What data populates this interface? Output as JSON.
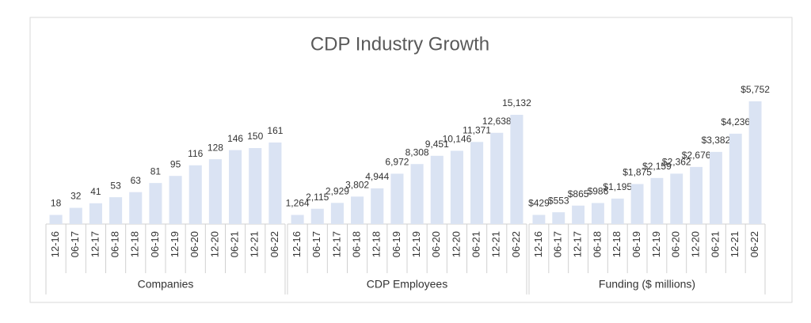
{
  "chart_data": {
    "type": "bar",
    "title": "CDP Industry Growth",
    "color": "#dae3f3",
    "categories": [
      "12-16",
      "06-17",
      "12-17",
      "06-18",
      "12-18",
      "06-19",
      "12-19",
      "06-20",
      "12-20",
      "06-21",
      "12-21",
      "06-22"
    ],
    "groups": [
      {
        "name": "Companies",
        "values": [
          18,
          32,
          41,
          53,
          63,
          81,
          95,
          116,
          128,
          146,
          150,
          161
        ]
      },
      {
        "name": "CDP Employees",
        "values": [
          1264,
          2115,
          2929,
          3802,
          4944,
          6972,
          8308,
          9451,
          10146,
          11371,
          12638,
          15132
        ],
        "value_labels": [
          "1,264",
          "2,115",
          "2,929",
          "3,802",
          "4,944",
          "6,972",
          "8,308",
          "9,451",
          "10,146",
          "11,371",
          "12,638",
          "15,132"
        ]
      },
      {
        "name": "Funding ($ millions)",
        "values": [
          429,
          553,
          865,
          986,
          1195,
          1875,
          2159,
          2362,
          2676,
          3382,
          4236,
          5752
        ],
        "value_labels": [
          "$429",
          "$553",
          "$865",
          "$986",
          "$1,195",
          "$1,875",
          "$2,159",
          "$2,362",
          "$2,676",
          "$3,382",
          "$4,236",
          "$5,752"
        ]
      }
    ]
  }
}
